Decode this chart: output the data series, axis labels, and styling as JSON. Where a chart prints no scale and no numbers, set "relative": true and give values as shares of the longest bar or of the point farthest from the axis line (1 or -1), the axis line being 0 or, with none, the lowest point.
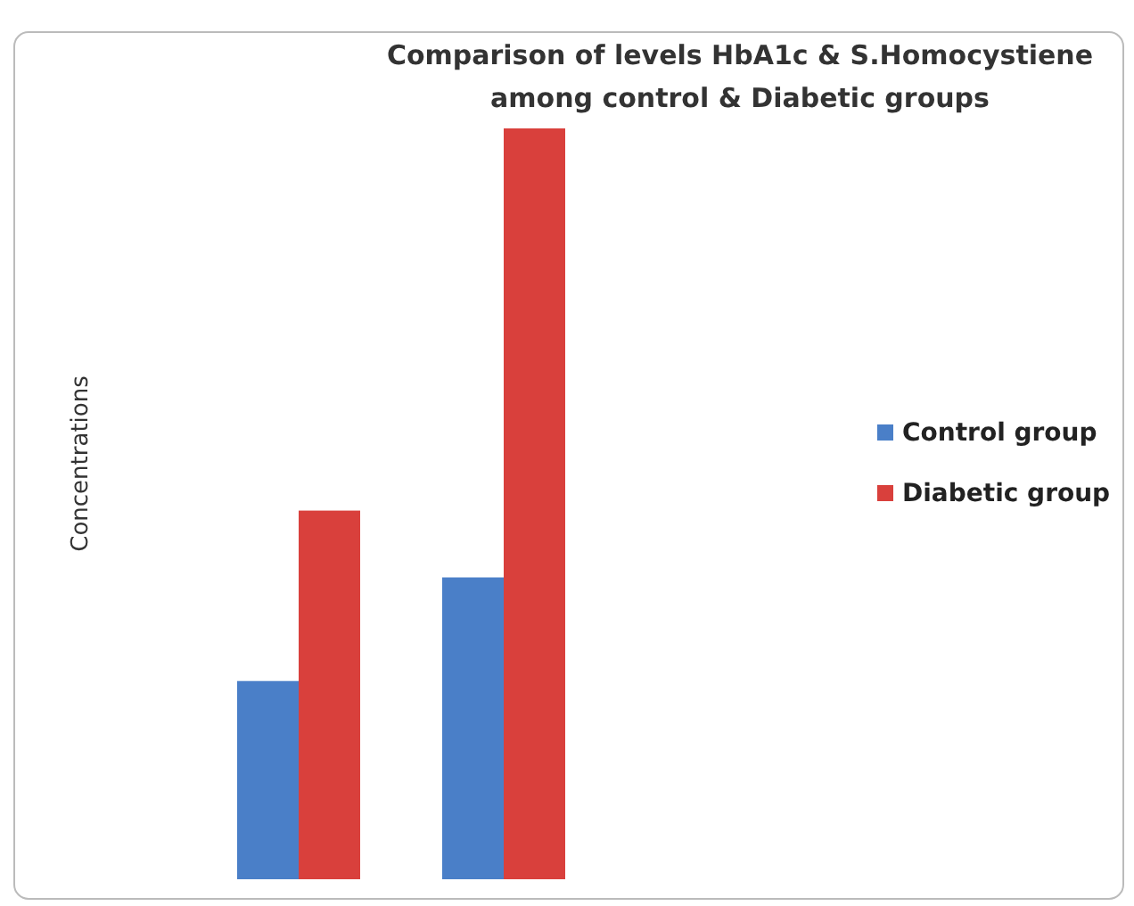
{
  "chart_data": {
    "type": "bar",
    "title": "Comparison of  levels HbA1c & S.Homocystiene\namong control & Diabetic groups",
    "ylabel": "Concentrations",
    "relative": true,
    "categories": [
      null,
      null
    ],
    "series": [
      {
        "name": "Control group",
        "color": "#4a7fc8",
        "values": [
          0.264,
          0.402
        ]
      },
      {
        "name": "Diabetic group",
        "color": "#d9403c",
        "values": [
          0.491,
          1
        ]
      }
    ],
    "legend": "right"
  }
}
